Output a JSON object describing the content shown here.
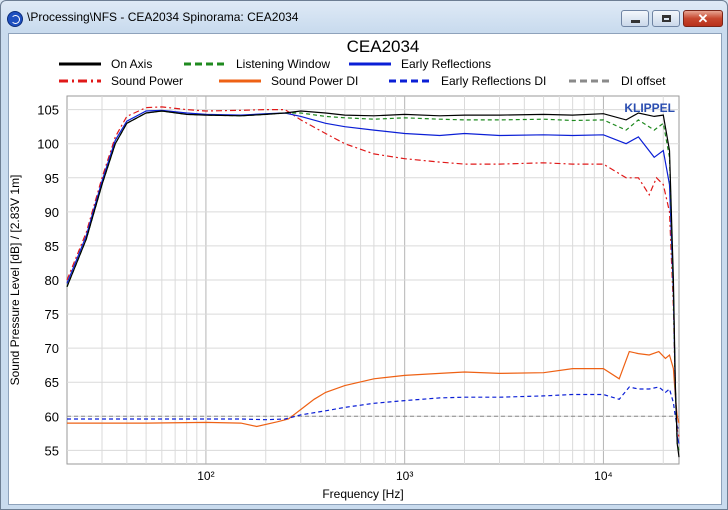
{
  "window": {
    "title": "\\Processing\\NFS - CEA2034 Spinorama: CEA2034",
    "buttons": {
      "minimize": "minimize-icon",
      "maximize": "maximize-icon",
      "close": "close-icon"
    }
  },
  "chart_data": {
    "type": "line",
    "title": "CEA2034",
    "xlabel": "Frequency [Hz]",
    "ylabel": "Sound Pressure Level [dB]  / [2.83V  1m]",
    "xscale": "log",
    "xlim": [
      20,
      24000
    ],
    "ylim": [
      53,
      107
    ],
    "yticks": [
      55,
      60,
      65,
      70,
      75,
      80,
      85,
      90,
      95,
      100,
      105
    ],
    "xticks": [
      {
        "value": 100,
        "label": "10²"
      },
      {
        "value": 1000,
        "label": "10³"
      },
      {
        "value": 10000,
        "label": "10⁴"
      }
    ],
    "grid": true,
    "legend_position": "top",
    "brand": "KLIPPEL",
    "brand_color": "#2a4db0",
    "series": [
      {
        "name": "On Axis",
        "color": "#000000",
        "dash": "solid",
        "points": [
          [
            20,
            79
          ],
          [
            25,
            86
          ],
          [
            30,
            94
          ],
          [
            35,
            100
          ],
          [
            40,
            103
          ],
          [
            50,
            104.5
          ],
          [
            60,
            104.8
          ],
          [
            80,
            104.3
          ],
          [
            100,
            104.2
          ],
          [
            150,
            104.1
          ],
          [
            200,
            104.3
          ],
          [
            250,
            104.5
          ],
          [
            300,
            104.8
          ],
          [
            400,
            104.5
          ],
          [
            500,
            104.2
          ],
          [
            700,
            104.1
          ],
          [
            1000,
            104.3
          ],
          [
            1500,
            104.1
          ],
          [
            2000,
            104.2
          ],
          [
            3000,
            104.2
          ],
          [
            5000,
            104.3
          ],
          [
            7000,
            104.2
          ],
          [
            10000,
            104.4
          ],
          [
            13000,
            103.5
          ],
          [
            15000,
            104.5
          ],
          [
            18000,
            104
          ],
          [
            20000,
            104.2
          ],
          [
            21500,
            99
          ],
          [
            22500,
            80
          ],
          [
            23000,
            65
          ],
          [
            23500,
            56
          ],
          [
            24000,
            54
          ]
        ]
      },
      {
        "name": "Listening Window",
        "color": "#1f8a1f",
        "dash": "dash",
        "points": [
          [
            20,
            79
          ],
          [
            25,
            86
          ],
          [
            30,
            94
          ],
          [
            35,
            100
          ],
          [
            40,
            103
          ],
          [
            50,
            104.5
          ],
          [
            60,
            104.8
          ],
          [
            80,
            104.3
          ],
          [
            100,
            104.2
          ],
          [
            150,
            104.1
          ],
          [
            200,
            104.3
          ],
          [
            250,
            104.5
          ],
          [
            300,
            104.5
          ],
          [
            400,
            104
          ],
          [
            500,
            103.8
          ],
          [
            700,
            103.6
          ],
          [
            1000,
            103.8
          ],
          [
            1500,
            103.6
          ],
          [
            2000,
            103.5
          ],
          [
            3000,
            103.5
          ],
          [
            5000,
            103.6
          ],
          [
            7000,
            103.4
          ],
          [
            10000,
            103.5
          ],
          [
            13000,
            102
          ],
          [
            15000,
            103.5
          ],
          [
            18000,
            102
          ],
          [
            20000,
            103
          ],
          [
            21500,
            98
          ],
          [
            22500,
            78
          ],
          [
            23000,
            64
          ],
          [
            23500,
            56
          ],
          [
            24000,
            55
          ]
        ]
      },
      {
        "name": "Early Reflections",
        "color": "#0b1fd6",
        "dash": "solid",
        "points": [
          [
            20,
            79.5
          ],
          [
            25,
            86.5
          ],
          [
            30,
            94.5
          ],
          [
            35,
            100.5
          ],
          [
            40,
            103.3
          ],
          [
            50,
            104.8
          ],
          [
            60,
            104.9
          ],
          [
            80,
            104.5
          ],
          [
            100,
            104.3
          ],
          [
            150,
            104.2
          ],
          [
            200,
            104.4
          ],
          [
            250,
            104.5
          ],
          [
            300,
            104
          ],
          [
            400,
            103
          ],
          [
            500,
            102.5
          ],
          [
            700,
            102
          ],
          [
            1000,
            101.5
          ],
          [
            1500,
            101.2
          ],
          [
            2000,
            101.5
          ],
          [
            3000,
            101.2
          ],
          [
            5000,
            101.3
          ],
          [
            7000,
            101.2
          ],
          [
            10000,
            101.3
          ],
          [
            13000,
            100
          ],
          [
            15000,
            101
          ],
          [
            18000,
            98
          ],
          [
            20000,
            99
          ],
          [
            21500,
            94
          ],
          [
            22500,
            78
          ],
          [
            23000,
            64
          ],
          [
            23500,
            57
          ],
          [
            24000,
            56
          ]
        ]
      },
      {
        "name": "Sound Power",
        "color": "#e01919",
        "dash": "dashdot",
        "points": [
          [
            20,
            80
          ],
          [
            25,
            87
          ],
          [
            30,
            95
          ],
          [
            35,
            101
          ],
          [
            40,
            104
          ],
          [
            50,
            105.3
          ],
          [
            60,
            105.4
          ],
          [
            80,
            105
          ],
          [
            100,
            104.8
          ],
          [
            150,
            104.9
          ],
          [
            200,
            105
          ],
          [
            250,
            105
          ],
          [
            300,
            103.5
          ],
          [
            400,
            101.5
          ],
          [
            500,
            100
          ],
          [
            700,
            98.5
          ],
          [
            1000,
            97.8
          ],
          [
            1500,
            97.3
          ],
          [
            2000,
            97
          ],
          [
            3000,
            97
          ],
          [
            5000,
            97.2
          ],
          [
            7000,
            97
          ],
          [
            10000,
            97
          ],
          [
            13000,
            95
          ],
          [
            15000,
            95
          ],
          [
            17000,
            92.5
          ],
          [
            18500,
            95
          ],
          [
            20000,
            94
          ],
          [
            21500,
            90
          ],
          [
            22500,
            76
          ],
          [
            23000,
            64
          ],
          [
            23500,
            58
          ],
          [
            24000,
            57
          ]
        ]
      },
      {
        "name": "Sound Power DI",
        "color": "#ee6114",
        "dash": "solid",
        "points": [
          [
            20,
            59
          ],
          [
            50,
            59
          ],
          [
            100,
            59.1
          ],
          [
            150,
            59
          ],
          [
            180,
            58.5
          ],
          [
            230,
            59.2
          ],
          [
            260,
            59.6
          ],
          [
            300,
            61
          ],
          [
            350,
            62.5
          ],
          [
            400,
            63.5
          ],
          [
            500,
            64.5
          ],
          [
            700,
            65.5
          ],
          [
            1000,
            66
          ],
          [
            1500,
            66.3
          ],
          [
            2000,
            66.5
          ],
          [
            3000,
            66.3
          ],
          [
            5000,
            66.4
          ],
          [
            7000,
            67
          ],
          [
            10000,
            67
          ],
          [
            12000,
            65.5
          ],
          [
            13500,
            69.5
          ],
          [
            15000,
            69.2
          ],
          [
            17000,
            69
          ],
          [
            19000,
            69.5
          ],
          [
            20500,
            68.5
          ],
          [
            21500,
            69
          ],
          [
            22500,
            67
          ],
          [
            23000,
            63
          ],
          [
            23500,
            60
          ],
          [
            24000,
            59
          ]
        ]
      },
      {
        "name": "Early Reflections DI",
        "color": "#0b1fd6",
        "dash": "dash",
        "points": [
          [
            20,
            59.6
          ],
          [
            50,
            59.6
          ],
          [
            100,
            59.6
          ],
          [
            150,
            59.6
          ],
          [
            200,
            59.5
          ],
          [
            250,
            59.6
          ],
          [
            300,
            60.2
          ],
          [
            400,
            60.8
          ],
          [
            500,
            61.3
          ],
          [
            700,
            61.9
          ],
          [
            1000,
            62.3
          ],
          [
            1500,
            62.7
          ],
          [
            2000,
            62.8
          ],
          [
            3000,
            62.8
          ],
          [
            5000,
            63
          ],
          [
            7000,
            63.2
          ],
          [
            10000,
            63.2
          ],
          [
            12000,
            62.5
          ],
          [
            13500,
            64.3
          ],
          [
            15000,
            64
          ],
          [
            17000,
            64
          ],
          [
            19000,
            64.3
          ],
          [
            20500,
            63.5
          ],
          [
            21500,
            64
          ],
          [
            22500,
            62
          ],
          [
            23000,
            60
          ],
          [
            23500,
            58.5
          ],
          [
            24000,
            58
          ]
        ]
      },
      {
        "name": "DI offset",
        "color": "#8a8a8a",
        "dash": "dash",
        "points": [
          [
            20,
            60
          ],
          [
            24000,
            60
          ]
        ]
      }
    ]
  }
}
